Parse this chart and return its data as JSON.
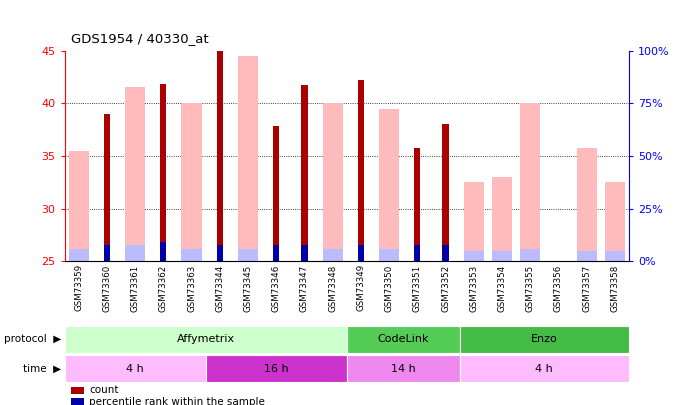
{
  "title": "GDS1954 / 40330_at",
  "samples": [
    "GSM73359",
    "GSM73360",
    "GSM73361",
    "GSM73362",
    "GSM73363",
    "GSM73344",
    "GSM73345",
    "GSM73346",
    "GSM73347",
    "GSM73348",
    "GSM73349",
    "GSM73350",
    "GSM73351",
    "GSM73352",
    "GSM73353",
    "GSM73354",
    "GSM73355",
    "GSM73356",
    "GSM73357",
    "GSM73358"
  ],
  "count_values": [
    null,
    39.0,
    null,
    41.8,
    null,
    45.0,
    null,
    37.8,
    41.7,
    null,
    42.2,
    null,
    35.8,
    38.0,
    null,
    null,
    null,
    null,
    null,
    null
  ],
  "rank_values": [
    null,
    26.5,
    null,
    26.8,
    null,
    26.5,
    null,
    26.5,
    26.5,
    null,
    26.5,
    null,
    26.5,
    26.5,
    null,
    null,
    null,
    null,
    null,
    null
  ],
  "absent_value_values": [
    35.5,
    null,
    41.5,
    null,
    40.0,
    null,
    44.5,
    null,
    null,
    40.0,
    null,
    39.5,
    null,
    null,
    32.5,
    33.0,
    40.0,
    null,
    35.8,
    32.5
  ],
  "absent_rank_values": [
    26.2,
    null,
    26.5,
    null,
    26.2,
    null,
    26.2,
    null,
    null,
    26.2,
    null,
    26.2,
    null,
    null,
    26.0,
    26.0,
    26.2,
    null,
    26.0,
    26.0
  ],
  "ylim": [
    25,
    45
  ],
  "yticks": [
    25,
    30,
    35,
    40,
    45
  ],
  "right_yticks": [
    0,
    25,
    50,
    75,
    100
  ],
  "right_ylabels": [
    "0%",
    "25%",
    "50%",
    "75%",
    "100%"
  ],
  "protocol_groups": [
    {
      "label": "Affymetrix",
      "start": 0,
      "end": 10,
      "color": "#ccffcc"
    },
    {
      "label": "CodeLink",
      "start": 10,
      "end": 14,
      "color": "#55cc55"
    },
    {
      "label": "Enzo",
      "start": 14,
      "end": 20,
      "color": "#44bb44"
    }
  ],
  "time_groups": [
    {
      "label": "4 h",
      "start": 0,
      "end": 5,
      "color": "#ffbbff"
    },
    {
      "label": "16 h",
      "start": 5,
      "end": 10,
      "color": "#cc33cc"
    },
    {
      "label": "14 h",
      "start": 10,
      "end": 14,
      "color": "#ee88ee"
    },
    {
      "label": "4 h",
      "start": 14,
      "end": 20,
      "color": "#ffbbff"
    }
  ],
  "color_count": "#aa0000",
  "color_rank": "#0000aa",
  "color_absent_value": "#ffbbbb",
  "color_absent_rank": "#bbbbff",
  "color_grid": "black",
  "bg_chart": "#ffffff"
}
